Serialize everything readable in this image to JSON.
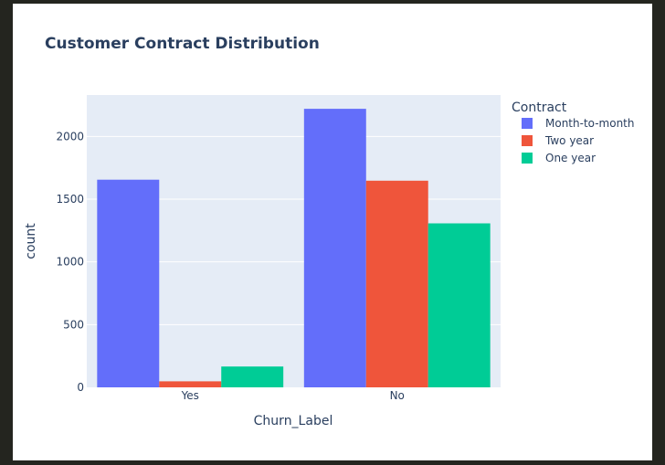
{
  "chart_data": {
    "type": "bar",
    "title": "Customer Contract Distribution",
    "xlabel": "Churn_Label",
    "ylabel": "count",
    "categories": [
      "Yes",
      "No"
    ],
    "ylim": [
      0,
      2330
    ],
    "yticks": [
      0,
      500,
      1000,
      1500,
      2000
    ],
    "grid": true,
    "legend_title": "Contract",
    "legend_position": "right",
    "series": [
      {
        "name": "Month-to-month",
        "color": "#636efa",
        "values": [
          1655,
          2220
        ]
      },
      {
        "name": "Two year",
        "color": "#ef553b",
        "values": [
          48,
          1647
        ]
      },
      {
        "name": "One year",
        "color": "#00cc96",
        "values": [
          166,
          1307
        ]
      }
    ]
  }
}
